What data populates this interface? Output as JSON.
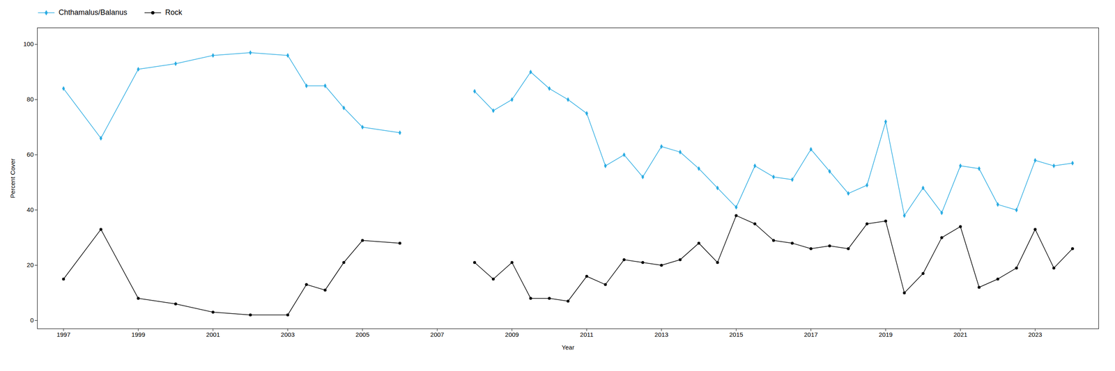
{
  "chart_data": {
    "type": "line",
    "xlabel": "Year",
    "ylabel": "Percent Cover",
    "x": [
      1997,
      1998,
      1999,
      2000,
      2001,
      2002,
      2003,
      2003.5,
      2004,
      2004.5,
      2005,
      2006,
      2007,
      2008,
      2008.5,
      2009,
      2009.5,
      2010,
      2010.5,
      2011,
      2011.5,
      2012,
      2012.5,
      2013,
      2013.5,
      2014,
      2014.5,
      2015,
      2015.5,
      2016,
      2016.5,
      2017,
      2017.5,
      2018,
      2018.5,
      2019,
      2019.5,
      2020,
      2020.5,
      2021,
      2021.5,
      2022,
      2022.5,
      2023,
      2023.5,
      2024
    ],
    "series": [
      {
        "name": "Chthamalus/Balanus",
        "color": "#29ABE2",
        "marker": "diamond",
        "line_style": "solid",
        "values": [
          84,
          66,
          91,
          93,
          96,
          97,
          96,
          85,
          85,
          77,
          70,
          68,
          null,
          83,
          76,
          80,
          90,
          84,
          80,
          75,
          56,
          60,
          52,
          63,
          61,
          55,
          48,
          41,
          56,
          52,
          51,
          62,
          54,
          46,
          49,
          72,
          38,
          48,
          39,
          56,
          55,
          42,
          40,
          58,
          56,
          57
        ]
      },
      {
        "name": "Rock",
        "color": "#000000",
        "marker": "circle",
        "line_style": "solid",
        "values": [
          15,
          33,
          8,
          6,
          3,
          2,
          2,
          13,
          11,
          21,
          29,
          28,
          null,
          21,
          15,
          21,
          8,
          8,
          7,
          16,
          13,
          22,
          21,
          20,
          22,
          28,
          21,
          38,
          35,
          29,
          28,
          26,
          27,
          26,
          35,
          36,
          10,
          17,
          30,
          34,
          12,
          15,
          19,
          33,
          19,
          26
        ]
      }
    ],
    "xlim": [
      1996.3,
      2024.7
    ],
    "ylim": [
      -3,
      106
    ],
    "xticks": [
      1997,
      1999,
      2001,
      2003,
      2005,
      2007,
      2009,
      2011,
      2013,
      2015,
      2017,
      2019,
      2021,
      2023
    ],
    "yticks": [
      0,
      20,
      40,
      60,
      80,
      100
    ],
    "grid": false,
    "legend": "top left"
  }
}
